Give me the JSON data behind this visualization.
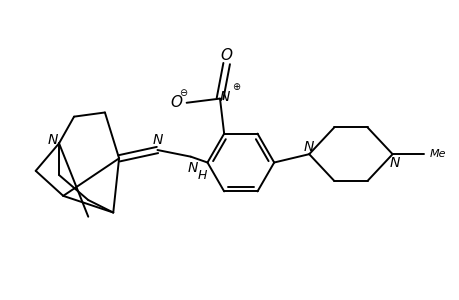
{
  "background_color": "#ffffff",
  "line_color": "#000000",
  "line_width": 1.4,
  "font_size": 9,
  "figsize": [
    4.6,
    3.0
  ],
  "dpi": 100,
  "xlim": [
    0.3,
    5.8
  ],
  "ylim": [
    0.2,
    3.2
  ]
}
